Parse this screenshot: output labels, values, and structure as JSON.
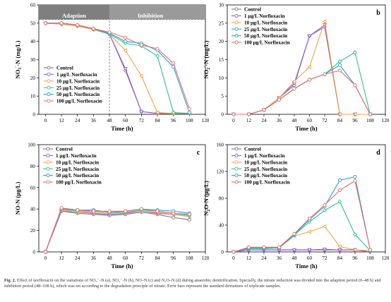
{
  "caption": {
    "label": "Fig. 2.",
    "text": "Effect of norfloxacin on the variations of NO₃⁻-N (a), NO₂⁻-N (b), NO–N (c) and N₂O–N (d) during anaerobic denitrification. Specially, the nitrate reduction was divided into the adaption period (0–48 h) and inhibition period (48–108 h), which was set according to the degradation principle of nitrate. Error bars represent the standard deviations of triplicate samples."
  },
  "colors": {
    "Control": "#7a7a7a",
    "1 μg/L Norfloxacin": "#9b59e6",
    "10 μg/L Norfloxacin": "#f5a445",
    "25 μg/L Norfloxacin": "#2ec48a",
    "50 μg/L Norfloxacin": "#2a9fd6",
    "100 μg/L Norfloxacin": "#ec6b6b"
  },
  "chart_data": [
    {
      "panel": "a",
      "type": "line",
      "xlabel": "Time (h)",
      "ylabel": "NO₃⁻-N (mg/L)",
      "ylabel_parts": [
        "NO",
        "3",
        "-",
        "-N (mg/L)"
      ],
      "xlim": [
        -5,
        120
      ],
      "ylim": [
        0,
        60
      ],
      "xticks": [
        0,
        12,
        24,
        36,
        48,
        60,
        72,
        84,
        96,
        108,
        120
      ],
      "yticks": [
        0,
        10,
        20,
        30,
        40,
        50,
        60
      ],
      "legend": "bottom-left",
      "annotations": {
        "region1": "Adaption",
        "region2": "Inhibition",
        "divider_x": 48,
        "hline_y": 52
      },
      "x": [
        0,
        12,
        24,
        36,
        48,
        60,
        72,
        84,
        96,
        108
      ],
      "series": [
        {
          "name": "Control",
          "values": [
            50,
            49.5,
            48.5,
            46.5,
            44,
            24,
            1.5,
            0.5,
            0.5,
            0.5
          ]
        },
        {
          "name": "1 μg/L Norfloxacin",
          "values": [
            50,
            49.5,
            48.5,
            46.5,
            44,
            25,
            1.5,
            0.5,
            0.5,
            0.5
          ]
        },
        {
          "name": "10 μg/L Norfloxacin",
          "values": [
            50,
            49.5,
            48.5,
            46.5,
            44,
            35,
            21,
            1,
            0.5,
            0.5
          ]
        },
        {
          "name": "25 μg/L Norfloxacin",
          "values": [
            50,
            50,
            49,
            47,
            44,
            39,
            37.5,
            32,
            1,
            0.5
          ]
        },
        {
          "name": "50 μg/L Norfloxacin",
          "values": [
            50,
            50,
            49,
            47,
            44.5,
            40,
            39,
            35,
            26,
            1
          ]
        },
        {
          "name": "100 μg/L Norfloxacin",
          "values": [
            50,
            50,
            49,
            47,
            45,
            42,
            38,
            36,
            28,
            3
          ]
        }
      ]
    },
    {
      "panel": "b",
      "type": "line",
      "xlabel": "Time (h)",
      "ylabel": "NO₂⁻-N (mg/L)",
      "ylabel_parts": [
        "NO",
        "2",
        "-",
        "-N (mg/L)"
      ],
      "xlim": [
        -5,
        120
      ],
      "ylim": [
        0,
        30
      ],
      "xticks": [
        0,
        12,
        24,
        36,
        48,
        60,
        72,
        84,
        96,
        108,
        120
      ],
      "yticks": [
        0,
        5,
        10,
        15,
        20,
        25,
        30
      ],
      "legend": "top-left",
      "x": [
        0,
        12,
        24,
        36,
        48,
        60,
        72,
        84,
        96,
        108
      ],
      "series": [
        {
          "name": "Control",
          "values": [
            0,
            0,
            1.2,
            4.5,
            8,
            21.5,
            24,
            0,
            0,
            0
          ]
        },
        {
          "name": "1 μg/L Norfloxacin",
          "values": [
            0,
            0,
            1.2,
            4.5,
            8.5,
            21.5,
            24.5,
            0,
            0,
            0
          ]
        },
        {
          "name": "10 μg/L Norfloxacin",
          "values": [
            0,
            0,
            1.2,
            4.5,
            9,
            13,
            25.5,
            0,
            0,
            0
          ]
        },
        {
          "name": "25 μg/L Norfloxacin",
          "values": [
            0,
            0,
            1.2,
            4,
            7,
            9.5,
            11,
            14.5,
            17,
            0
          ]
        },
        {
          "name": "50 μg/L Norfloxacin",
          "values": [
            0,
            0,
            1.2,
            4,
            7,
            9.5,
            11,
            13.5,
            8,
            0
          ]
        },
        {
          "name": "100 μg/L Norfloxacin",
          "values": [
            0,
            0,
            1.2,
            4,
            7,
            9.5,
            11,
            12,
            8,
            0
          ]
        }
      ]
    },
    {
      "panel": "c",
      "type": "line",
      "xlabel": "Time (h)",
      "ylabel": "NO-N (μg/L)",
      "xlim": [
        -5,
        120
      ],
      "ylim": [
        0,
        100
      ],
      "xticks": [
        0,
        12,
        24,
        36,
        48,
        60,
        72,
        84,
        96,
        108,
        120
      ],
      "yticks": [
        0,
        20,
        40,
        60,
        80,
        100
      ],
      "legend": "top-left",
      "x": [
        0,
        12,
        24,
        36,
        48,
        60,
        72,
        84,
        96,
        108
      ],
      "series": [
        {
          "name": "Control",
          "values": [
            0,
            38,
            36,
            35,
            34,
            35,
            37,
            35,
            32,
            30
          ]
        },
        {
          "name": "1 μg/L Norfloxacin",
          "values": [
            0,
            38,
            37,
            36,
            35,
            36,
            38,
            36,
            35,
            33
          ]
        },
        {
          "name": "10 μg/L Norfloxacin",
          "values": [
            0,
            39,
            37,
            37,
            36,
            37,
            38,
            37,
            35,
            33
          ]
        },
        {
          "name": "25 μg/L Norfloxacin",
          "values": [
            0,
            40,
            38,
            38,
            37,
            37,
            39,
            38,
            36,
            34
          ]
        },
        {
          "name": "50 μg/L Norfloxacin",
          "values": [
            0,
            40,
            39,
            39,
            37,
            38,
            40,
            39,
            38,
            36
          ]
        },
        {
          "name": "100 μg/L Norfloxacin",
          "values": [
            0,
            41,
            39,
            38,
            38,
            38,
            40,
            38,
            36,
            35
          ]
        }
      ]
    },
    {
      "panel": "d",
      "type": "line",
      "xlabel": "Time (h)",
      "ylabel": "N₂O-N (μg/L)",
      "ylabel_parts": [
        "N",
        "2",
        "",
        "O-N (μg/L)"
      ],
      "xlim": [
        -5,
        120
      ],
      "ylim": [
        0,
        160
      ],
      "xticks": [
        0,
        12,
        24,
        36,
        48,
        60,
        72,
        84,
        96,
        108,
        120
      ],
      "yticks": [
        0,
        40,
        80,
        120,
        160
      ],
      "legend": "top-left",
      "x": [
        0,
        12,
        24,
        36,
        48,
        60,
        72,
        84,
        96,
        108
      ],
      "series": [
        {
          "name": "Control",
          "values": [
            0,
            3,
            3,
            3,
            3,
            3,
            3,
            3,
            3,
            0
          ]
        },
        {
          "name": "1 μg/L Norfloxacin",
          "values": [
            0,
            3,
            3,
            3,
            3,
            3,
            4,
            3,
            3,
            0
          ]
        },
        {
          "name": "10 μg/L Norfloxacin",
          "values": [
            0,
            5,
            5,
            6,
            24,
            30,
            38,
            8,
            3,
            2
          ]
        },
        {
          "name": "25 μg/L Norfloxacin",
          "values": [
            0,
            5,
            5,
            6,
            25,
            45,
            62,
            75,
            26,
            2
          ]
        },
        {
          "name": "50 μg/L Norfloxacin",
          "values": [
            0,
            6,
            6,
            6,
            26,
            48,
            68,
            107,
            112,
            3
          ]
        },
        {
          "name": "100 μg/L Norfloxacin",
          "values": [
            0,
            7,
            7,
            7,
            27,
            50,
            70,
            92,
            106,
            3
          ]
        }
      ]
    }
  ]
}
